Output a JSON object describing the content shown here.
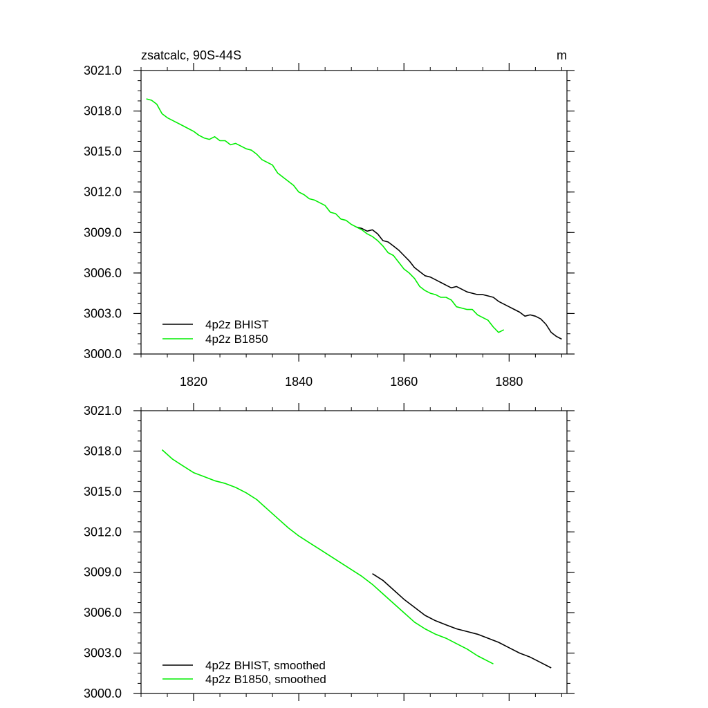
{
  "chart_data": [
    {
      "type": "line",
      "title": "zsatcalc, 90S-44S",
      "units": "m",
      "xlim": [
        1810,
        1891
      ],
      "ylim": [
        3000.0,
        3021.0
      ],
      "yticks": [
        3000.0,
        3003.0,
        3006.0,
        3009.0,
        3012.0,
        3015.0,
        3018.0,
        3021.0
      ],
      "ytick_labels": [
        "3000.0",
        "3003.0",
        "3006.0",
        "3009.0",
        "3012.0",
        "3015.0",
        "3018.0",
        "3021.0"
      ],
      "xticks": [
        1820,
        1840,
        1860,
        1880
      ],
      "xtick_labels": [
        "1820",
        "1840",
        "1860",
        "1880"
      ],
      "grid": false,
      "legend_position": "bottom-left",
      "series": [
        {
          "name": "4p2z BHIST",
          "color": "#000000",
          "x": [
            1851,
            1852,
            1853,
            1854,
            1855,
            1856,
            1857,
            1858,
            1859,
            1860,
            1861,
            1862,
            1863,
            1864,
            1865,
            1866,
            1867,
            1868,
            1869,
            1870,
            1871,
            1872,
            1873,
            1874,
            1875,
            1876,
            1877,
            1878,
            1879,
            1880,
            1881,
            1882,
            1883,
            1884,
            1885,
            1886,
            1887,
            1888,
            1889,
            1890
          ],
          "y": [
            3009.4,
            3009.3,
            3009.1,
            3009.2,
            3008.9,
            3008.4,
            3008.3,
            3008.0,
            3007.7,
            3007.3,
            3006.9,
            3006.4,
            3006.1,
            3005.8,
            3005.7,
            3005.5,
            3005.3,
            3005.1,
            3004.9,
            3005.0,
            3004.8,
            3004.6,
            3004.5,
            3004.4,
            3004.4,
            3004.3,
            3004.2,
            3003.9,
            3003.7,
            3003.5,
            3003.3,
            3003.1,
            3002.8,
            3002.9,
            3002.8,
            3002.6,
            3002.2,
            3001.6,
            3001.3,
            3001.1
          ]
        },
        {
          "name": "4p2z B1850",
          "color": "#00ee00",
          "x": [
            1811,
            1812,
            1813,
            1814,
            1815,
            1816,
            1817,
            1818,
            1819,
            1820,
            1821,
            1822,
            1823,
            1824,
            1825,
            1826,
            1827,
            1828,
            1829,
            1830,
            1831,
            1832,
            1833,
            1834,
            1835,
            1836,
            1837,
            1838,
            1839,
            1840,
            1841,
            1842,
            1843,
            1844,
            1845,
            1846,
            1847,
            1848,
            1849,
            1850,
            1851,
            1852,
            1853,
            1854,
            1855,
            1856,
            1857,
            1858,
            1859,
            1860,
            1861,
            1862,
            1863,
            1864,
            1865,
            1866,
            1867,
            1868,
            1869,
            1870,
            1871,
            1872,
            1873,
            1874,
            1875,
            1876,
            1877,
            1878,
            1879
          ],
          "y": [
            3018.9,
            3018.8,
            3018.5,
            3017.8,
            3017.5,
            3017.3,
            3017.1,
            3016.9,
            3016.7,
            3016.5,
            3016.2,
            3016.0,
            3015.9,
            3016.1,
            3015.8,
            3015.8,
            3015.5,
            3015.6,
            3015.4,
            3015.2,
            3015.1,
            3014.8,
            3014.4,
            3014.2,
            3014.0,
            3013.4,
            3013.1,
            3012.8,
            3012.5,
            3012.0,
            3011.8,
            3011.5,
            3011.4,
            3011.2,
            3011.0,
            3010.5,
            3010.4,
            3010.0,
            3009.9,
            3009.6,
            3009.4,
            3009.2,
            3008.9,
            3008.7,
            3008.4,
            3008.0,
            3007.5,
            3007.3,
            3006.8,
            3006.3,
            3006.0,
            3005.6,
            3005.0,
            3004.7,
            3004.5,
            3004.4,
            3004.2,
            3004.2,
            3004.0,
            3003.5,
            3003.4,
            3003.3,
            3003.3,
            3002.9,
            3002.7,
            3002.5,
            3002.0,
            3001.6,
            3001.8
          ]
        }
      ]
    },
    {
      "type": "line",
      "title": "",
      "xlim": [
        1810,
        1891
      ],
      "ylim": [
        3000.0,
        3021.0
      ],
      "yticks": [
        3000.0,
        3003.0,
        3006.0,
        3009.0,
        3012.0,
        3015.0,
        3018.0,
        3021.0
      ],
      "ytick_labels": [
        "3000.0",
        "3003.0",
        "3006.0",
        "3009.0",
        "3012.0",
        "3015.0",
        "3018.0",
        "3021.0"
      ],
      "xticks": [
        1820,
        1840,
        1860,
        1880
      ],
      "grid": false,
      "legend_position": "bottom-left",
      "series": [
        {
          "name": "4p2z BHIST, smoothed",
          "color": "#000000",
          "x": [
            1854,
            1856,
            1858,
            1860,
            1862,
            1864,
            1866,
            1868,
            1870,
            1872,
            1874,
            1876,
            1878,
            1880,
            1882,
            1884,
            1886,
            1888
          ],
          "y": [
            3008.9,
            3008.4,
            3007.7,
            3007.0,
            3006.4,
            3005.8,
            3005.4,
            3005.1,
            3004.8,
            3004.6,
            3004.4,
            3004.1,
            3003.8,
            3003.4,
            3003.0,
            3002.7,
            3002.3,
            3001.9
          ]
        },
        {
          "name": "4p2z B1850, smoothed",
          "color": "#00ee00",
          "x": [
            1814,
            1816,
            1818,
            1820,
            1822,
            1824,
            1826,
            1828,
            1830,
            1832,
            1834,
            1836,
            1838,
            1840,
            1842,
            1844,
            1846,
            1848,
            1850,
            1852,
            1854,
            1856,
            1858,
            1860,
            1862,
            1864,
            1866,
            1868,
            1870,
            1872,
            1874,
            1876,
            1877
          ],
          "y": [
            3018.1,
            3017.4,
            3016.9,
            3016.4,
            3016.1,
            3015.8,
            3015.6,
            3015.3,
            3014.9,
            3014.4,
            3013.7,
            3013.0,
            3012.3,
            3011.7,
            3011.2,
            3010.7,
            3010.2,
            3009.7,
            3009.2,
            3008.7,
            3008.1,
            3007.4,
            3006.7,
            3006.0,
            3005.3,
            3004.8,
            3004.4,
            3004.1,
            3003.7,
            3003.3,
            3002.8,
            3002.4,
            3002.2
          ]
        }
      ]
    }
  ]
}
